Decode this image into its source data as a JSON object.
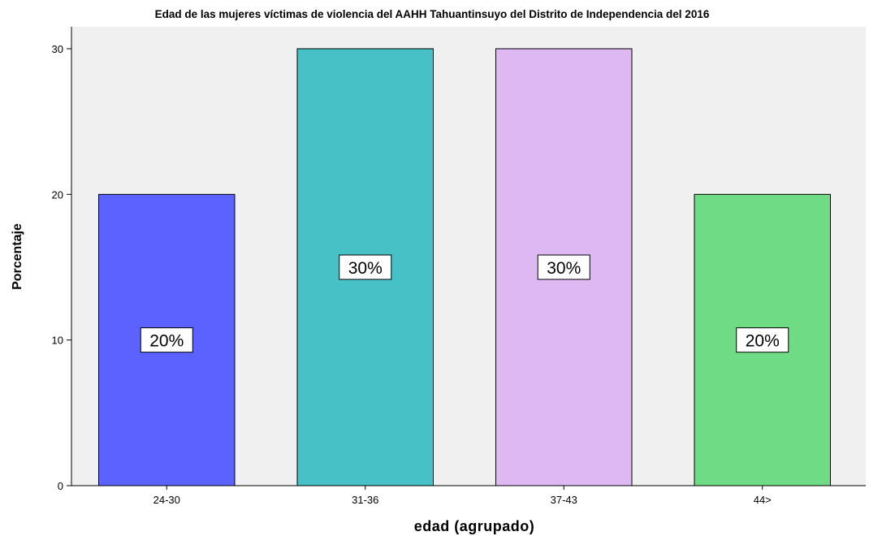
{
  "chart_data": {
    "type": "bar",
    "title": "Edad de las mujeres víctimas de violencia del AAHH Tahuantinsuyo del Distrito de Independencia del 2016",
    "xlabel": "edad (agrupado)",
    "ylabel": "Porcentaje",
    "categories": [
      "24-30",
      "31-36",
      "37-43",
      "44>"
    ],
    "values": [
      20,
      30,
      30,
      20
    ],
    "data_labels": [
      "20%",
      "30%",
      "30%",
      "20%"
    ],
    "colors": [
      "#5c62ff",
      "#47c1c5",
      "#ddb8f3",
      "#6fdb84"
    ],
    "ylim": [
      0,
      30
    ],
    "yticks": [
      0,
      10,
      20,
      30
    ],
    "plot_background": "#f0f0f0",
    "grid": false,
    "legend": "none"
  }
}
